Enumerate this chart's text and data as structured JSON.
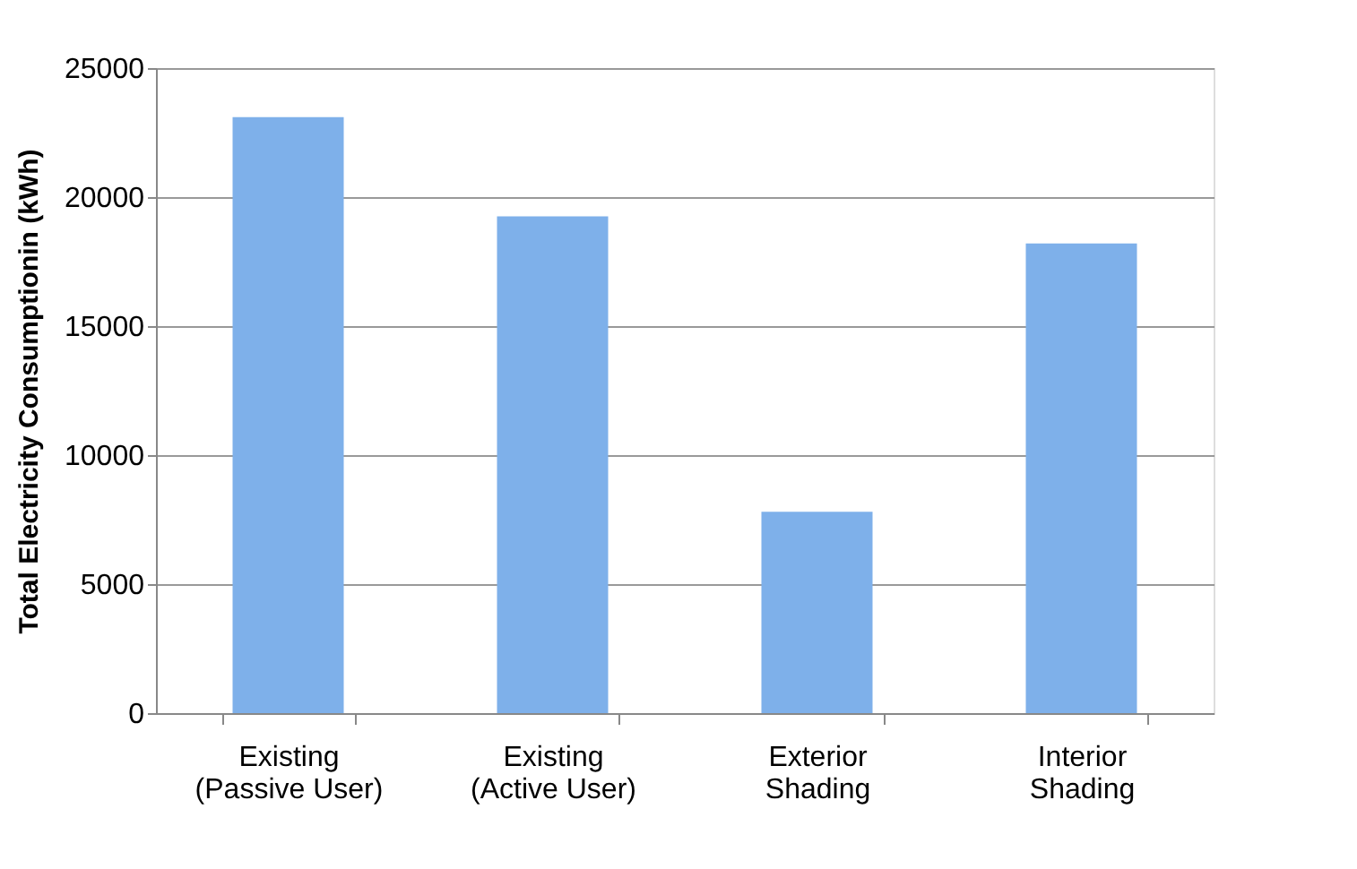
{
  "chart_data": {
    "type": "bar",
    "ylabel": "Total Electricity Consumptionin (kWh)",
    "categories": [
      "Existing\n(Passive User)",
      "Existing\n(Active User)",
      "Exterior\nShading",
      "Interior\nShading"
    ],
    "values": [
      23100,
      19250,
      7800,
      18200
    ],
    "color": "#7eb0ea",
    "ylim": [
      0,
      25000
    ],
    "yticks": [
      0,
      5000,
      10000,
      15000,
      20000,
      25000
    ],
    "grid": "y"
  }
}
